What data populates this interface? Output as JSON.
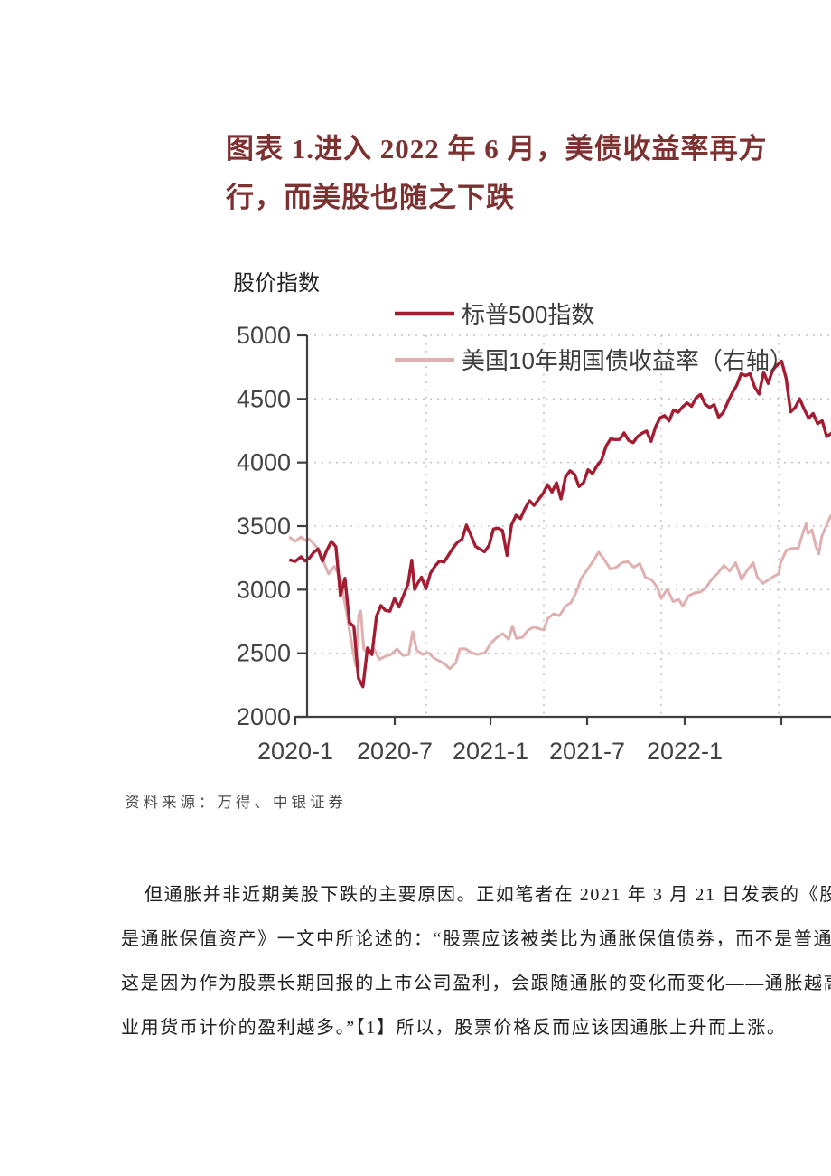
{
  "figure_title": {
    "lines": [
      "图表 1.进入 2022 年 6 月，美债收益率再方",
      "行，而美股也随之下跌"
    ],
    "color": "#7e3131"
  },
  "chart": {
    "y_axis_label": "股价指数",
    "legend": [
      {
        "label": "标普500指数",
        "color": "#a31c31"
      },
      {
        "label": "美国10年期国债收益率（右轴）",
        "color": "#e0b0b0"
      }
    ]
  },
  "source_note": "资料来源：万得、中银证券",
  "paragraph": {
    "lines": [
      "但通胀并非近期美股下跌的主要原因。正如笔者在 2021 年 3 月 21 日发表的《股票",
      "是通胀保值资产》一文中所论述的：“股票应该被类比为通胀保值债券，而不是普通债券。",
      "这是因为作为股票长期回报的上市公司盈利，会跟随通胀的变化而变化——通胀越高，企",
      "业用货币计价的盈利越多。”【1】所以，股票价格反而应该因通胀上升而上涨。"
    ]
  },
  "colors": {
    "sp500": "#a31c31",
    "treasury": "#e0b0b0",
    "axis": "#3f3f3f",
    "grid": "#c7c3c3",
    "title_maroon": "#7e3131"
  },
  "chart_data": {
    "type": "line",
    "title": "",
    "ylabel": "股价指数",
    "x_unit": "months since 2020-01",
    "x_tick_labels": [
      "2020-1",
      "2020-7",
      "2021-1",
      "2021-7",
      "2022-1"
    ],
    "x_tick_months": [
      0,
      6,
      12,
      18,
      24
    ],
    "y_ticks": [
      2000,
      2500,
      3000,
      3500,
      4000,
      4500,
      5000
    ],
    "ylim": [
      2000,
      5000
    ],
    "grid": "dotted",
    "legend_position": "top-inside",
    "right_axis_visible": false,
    "note": "Second series is plotted against a right axis that is cut off at the image edge; its values below are left-axis equivalents as drawn.",
    "series": [
      {
        "name": "标普500指数",
        "color": "#a31c31",
        "axis": "left",
        "points": [
          [
            -1.0,
            3235
          ],
          [
            -0.7,
            3223
          ],
          [
            -0.4,
            3258
          ],
          [
            -0.2,
            3226
          ],
          [
            0,
            3245
          ],
          [
            0.23,
            3290
          ],
          [
            0.46,
            3320
          ],
          [
            0.69,
            3225
          ],
          [
            0.92,
            3310
          ],
          [
            1.15,
            3380
          ],
          [
            1.38,
            3338
          ],
          [
            1.61,
            2954
          ],
          [
            1.84,
            3090
          ],
          [
            2.07,
            2741
          ],
          [
            2.3,
            2711
          ],
          [
            2.53,
            2305
          ],
          [
            2.76,
            2237
          ],
          [
            2.99,
            2541
          ],
          [
            3.22,
            2489
          ],
          [
            3.45,
            2790
          ],
          [
            3.68,
            2875
          ],
          [
            3.91,
            2837
          ],
          [
            4.14,
            2830
          ],
          [
            4.37,
            2930
          ],
          [
            4.6,
            2864
          ],
          [
            4.83,
            2955
          ],
          [
            5.06,
            3044
          ],
          [
            5.25,
            3232
          ],
          [
            5.4,
            3002
          ],
          [
            5.52,
            3041
          ],
          [
            5.75,
            3098
          ],
          [
            5.98,
            3009
          ],
          [
            6.21,
            3130
          ],
          [
            6.44,
            3185
          ],
          [
            6.67,
            3225
          ],
          [
            6.9,
            3216
          ],
          [
            7.13,
            3271
          ],
          [
            7.36,
            3327
          ],
          [
            7.59,
            3373
          ],
          [
            7.82,
            3397
          ],
          [
            8.05,
            3508
          ],
          [
            8.28,
            3427
          ],
          [
            8.51,
            3341
          ],
          [
            8.74,
            3319
          ],
          [
            8.97,
            3298
          ],
          [
            9.2,
            3348
          ],
          [
            9.43,
            3477
          ],
          [
            9.66,
            3484
          ],
          [
            9.89,
            3465
          ],
          [
            10.12,
            3270
          ],
          [
            10.35,
            3509
          ],
          [
            10.58,
            3585
          ],
          [
            10.81,
            3558
          ],
          [
            11.04,
            3638
          ],
          [
            11.27,
            3699
          ],
          [
            11.5,
            3663
          ],
          [
            11.73,
            3709
          ],
          [
            11.96,
            3756
          ],
          [
            12.19,
            3825
          ],
          [
            12.42,
            3768
          ],
          [
            12.65,
            3841
          ],
          [
            12.88,
            3714
          ],
          [
            13.11,
            3887
          ],
          [
            13.34,
            3935
          ],
          [
            13.57,
            3907
          ],
          [
            13.8,
            3811
          ],
          [
            14.03,
            3842
          ],
          [
            14.26,
            3943
          ],
          [
            14.49,
            3913
          ],
          [
            14.72,
            3975
          ],
          [
            14.95,
            4020
          ],
          [
            15.18,
            4129
          ],
          [
            15.41,
            4185
          ],
          [
            15.64,
            4180
          ],
          [
            15.87,
            4181
          ],
          [
            16.1,
            4233
          ],
          [
            16.33,
            4174
          ],
          [
            16.56,
            4156
          ],
          [
            16.79,
            4204
          ],
          [
            17.02,
            4230
          ],
          [
            17.25,
            4247
          ],
          [
            17.48,
            4166
          ],
          [
            17.71,
            4281
          ],
          [
            17.94,
            4352
          ],
          [
            18.17,
            4369
          ],
          [
            18.4,
            4327
          ],
          [
            18.63,
            4412
          ],
          [
            18.86,
            4395
          ],
          [
            19.09,
            4437
          ],
          [
            19.32,
            4468
          ],
          [
            19.55,
            4442
          ],
          [
            19.78,
            4509
          ],
          [
            20.01,
            4535
          ],
          [
            20.24,
            4459
          ],
          [
            20.47,
            4433
          ],
          [
            20.7,
            4455
          ],
          [
            20.93,
            4357
          ],
          [
            21.16,
            4391
          ],
          [
            21.39,
            4471
          ],
          [
            21.62,
            4545
          ],
          [
            21.85,
            4605
          ],
          [
            22.08,
            4698
          ],
          [
            22.31,
            4683
          ],
          [
            22.54,
            4698
          ],
          [
            22.77,
            4595
          ],
          [
            23.0,
            4538
          ],
          [
            23.23,
            4712
          ],
          [
            23.46,
            4621
          ],
          [
            23.69,
            4726
          ],
          [
            23.92,
            4766
          ],
          [
            24.15,
            4797
          ],
          [
            24.38,
            4663
          ],
          [
            24.61,
            4398
          ],
          [
            24.84,
            4432
          ],
          [
            25.07,
            4501
          ],
          [
            25.3,
            4419
          ],
          [
            25.53,
            4349
          ],
          [
            25.76,
            4385
          ],
          [
            25.99,
            4305
          ],
          [
            26.22,
            4329
          ],
          [
            26.45,
            4204
          ],
          [
            26.7,
            4230
          ]
        ]
      },
      {
        "name": "美国10年期国债收益率（右轴）",
        "color": "#e0b0b0",
        "axis": "right",
        "points": [
          [
            -1.0,
            3415
          ],
          [
            -0.7,
            3380
          ],
          [
            -0.4,
            3415
          ],
          [
            -0.2,
            3388
          ],
          [
            0,
            3400
          ],
          [
            0.5,
            3318
          ],
          [
            1,
            3124
          ],
          [
            1.3,
            3183
          ],
          [
            1.6,
            3094
          ],
          [
            1.9,
            2840
          ],
          [
            2.2,
            2564
          ],
          [
            2.4,
            2400
          ],
          [
            2.55,
            2803
          ],
          [
            2.65,
            2833
          ],
          [
            2.8,
            2534
          ],
          [
            3,
            2497
          ],
          [
            3.3,
            2542
          ],
          [
            3.6,
            2452
          ],
          [
            3.9,
            2475
          ],
          [
            4.2,
            2490
          ],
          [
            4.5,
            2534
          ],
          [
            4.8,
            2482
          ],
          [
            5.1,
            2490
          ],
          [
            5.3,
            2669
          ],
          [
            5.5,
            2527
          ],
          [
            5.8,
            2490
          ],
          [
            6.1,
            2504
          ],
          [
            6.4,
            2460
          ],
          [
            6.7,
            2437
          ],
          [
            7,
            2407
          ],
          [
            7.2,
            2378
          ],
          [
            7.5,
            2422
          ],
          [
            7.7,
            2534
          ],
          [
            8,
            2534
          ],
          [
            8.3,
            2504
          ],
          [
            8.6,
            2490
          ],
          [
            9,
            2504
          ],
          [
            9.3,
            2579
          ],
          [
            9.6,
            2624
          ],
          [
            9.9,
            2654
          ],
          [
            10.2,
            2609
          ],
          [
            10.4,
            2713
          ],
          [
            10.6,
            2616
          ],
          [
            10.9,
            2624
          ],
          [
            11.2,
            2683
          ],
          [
            11.5,
            2706
          ],
          [
            11.8,
            2691
          ],
          [
            12,
            2683
          ],
          [
            12.2,
            2773
          ],
          [
            12.5,
            2810
          ],
          [
            12.8,
            2795
          ],
          [
            13.1,
            2870
          ],
          [
            13.4,
            2900
          ],
          [
            13.7,
            2997
          ],
          [
            13.9,
            3086
          ],
          [
            14.2,
            3153
          ],
          [
            14.5,
            3220
          ],
          [
            14.8,
            3295
          ],
          [
            15.1,
            3235
          ],
          [
            15.4,
            3161
          ],
          [
            15.7,
            3176
          ],
          [
            16,
            3213
          ],
          [
            16.3,
            3220
          ],
          [
            16.6,
            3176
          ],
          [
            16.9,
            3205
          ],
          [
            17.2,
            3094
          ],
          [
            17.5,
            3079
          ],
          [
            17.8,
            3019
          ],
          [
            18,
            2930
          ],
          [
            18.3,
            3004
          ],
          [
            18.6,
            2907
          ],
          [
            18.9,
            2922
          ],
          [
            19.1,
            2870
          ],
          [
            19.4,
            2952
          ],
          [
            19.7,
            2974
          ],
          [
            20,
            2982
          ],
          [
            20.3,
            3019
          ],
          [
            20.6,
            3086
          ],
          [
            20.9,
            3131
          ],
          [
            21.2,
            3191
          ],
          [
            21.5,
            3146
          ],
          [
            21.8,
            3213
          ],
          [
            22.1,
            3079
          ],
          [
            22.4,
            3153
          ],
          [
            22.7,
            3213
          ],
          [
            22.9,
            3101
          ],
          [
            23.2,
            3049
          ],
          [
            23.5,
            3079
          ],
          [
            23.8,
            3109
          ],
          [
            24,
            3124
          ],
          [
            24.1,
            3213
          ],
          [
            24.4,
            3310
          ],
          [
            24.7,
            3325
          ],
          [
            25,
            3325
          ],
          [
            25.2,
            3429
          ],
          [
            25.4,
            3519
          ],
          [
            25.5,
            3441
          ],
          [
            25.7,
            3470
          ],
          [
            25.9,
            3340
          ],
          [
            26.05,
            3281
          ],
          [
            26.2,
            3420
          ],
          [
            26.45,
            3510
          ],
          [
            26.6,
            3560
          ],
          [
            26.7,
            3590
          ]
        ]
      }
    ]
  }
}
